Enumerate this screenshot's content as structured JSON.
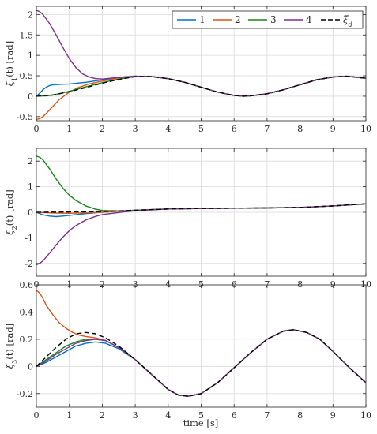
{
  "legend": {
    "entries": [
      {
        "label": "1",
        "color": "#0072BD",
        "dash": false
      },
      {
        "label": "2",
        "color": "#D95319",
        "dash": false
      },
      {
        "label": "3",
        "color": "#138713",
        "dash": false
      },
      {
        "label": "4",
        "color": "#7E2F8E",
        "dash": false
      },
      {
        "label": "ξ",
        "sub": "d",
        "color": "#000000",
        "dash": true
      }
    ]
  },
  "xaxis_label": "time [s]",
  "chart_data": [
    {
      "type": "line",
      "ylabel": "ξ1(t) [rad]",
      "ylabel_main": "ξ",
      "ylabel_sub": "1",
      "ylabel_rest": "(t) [rad]",
      "xlim": [
        0,
        10
      ],
      "ylim": [
        -0.6,
        2.2
      ],
      "xticks": [
        "0",
        "1",
        "2",
        "3",
        "4",
        "5",
        "6",
        "7",
        "8",
        "9",
        "10"
      ],
      "yticks": [
        {
          "v": -0.5,
          "label": "-0.5"
        },
        {
          "v": 0,
          "label": "0"
        },
        {
          "v": 0.5,
          "label": "0.5"
        },
        {
          "v": 1,
          "label": "1"
        },
        {
          "v": 1.5,
          "label": "1.5"
        },
        {
          "v": 2,
          "label": "2"
        }
      ],
      "grid": true,
      "legend_position": "top-right",
      "series": [
        {
          "name": "1",
          "color": "#0072BD",
          "x": [
            0,
            0.1,
            0.2,
            0.3,
            0.4,
            0.5,
            0.7,
            1,
            1.5,
            2,
            2.5,
            3,
            3.5,
            4,
            4.5,
            5,
            5.5,
            6,
            6.28,
            6.5,
            7,
            7.5,
            8,
            8.5,
            9,
            9.42,
            10
          ],
          "y": [
            0,
            0.07,
            0.16,
            0.22,
            0.26,
            0.28,
            0.29,
            0.3,
            0.34,
            0.4,
            0.46,
            0.49,
            0.48,
            0.43,
            0.34,
            0.22,
            0.1,
            0.02,
            0,
            0.01,
            0.06,
            0.16,
            0.28,
            0.4,
            0.47,
            0.49,
            0.44
          ]
        },
        {
          "name": "2",
          "color": "#D95319",
          "x": [
            0,
            0.1,
            0.2,
            0.3,
            0.5,
            0.7,
            1,
            1.3,
            1.6,
            2,
            2.5,
            3,
            3.5,
            4,
            4.5,
            5,
            5.5,
            6,
            6.28,
            6.5,
            7,
            7.5,
            8,
            8.5,
            9,
            9.42,
            10
          ],
          "y": [
            -0.57,
            -0.55,
            -0.5,
            -0.42,
            -0.25,
            -0.08,
            0.1,
            0.22,
            0.3,
            0.37,
            0.45,
            0.49,
            0.48,
            0.43,
            0.34,
            0.22,
            0.1,
            0.02,
            0,
            0.01,
            0.06,
            0.16,
            0.28,
            0.4,
            0.47,
            0.49,
            0.44
          ]
        },
        {
          "name": "3",
          "color": "#138713",
          "x": [
            0,
            0.3,
            0.5,
            0.7,
            1,
            1.5,
            2,
            2.5,
            3,
            3.5,
            4,
            4.5,
            5,
            5.5,
            6,
            6.28,
            6.5,
            7,
            7.5,
            8,
            8.5,
            9,
            9.42,
            10
          ],
          "y": [
            0,
            0.01,
            0.03,
            0.06,
            0.12,
            0.23,
            0.33,
            0.42,
            0.48,
            0.48,
            0.43,
            0.34,
            0.22,
            0.1,
            0.02,
            0,
            0.01,
            0.06,
            0.16,
            0.28,
            0.4,
            0.47,
            0.49,
            0.44
          ]
        },
        {
          "name": "4",
          "color": "#7E2F8E",
          "x": [
            0,
            0.1,
            0.2,
            0.4,
            0.6,
            0.8,
            1,
            1.2,
            1.4,
            1.6,
            1.8,
            2,
            2.5,
            3,
            3.5,
            4,
            4.5,
            5,
            5.5,
            6,
            6.28,
            6.5,
            7,
            7.5,
            8,
            8.5,
            9,
            9.42,
            10
          ],
          "y": [
            2.1,
            2.07,
            2.0,
            1.78,
            1.5,
            1.2,
            0.92,
            0.7,
            0.55,
            0.47,
            0.43,
            0.42,
            0.46,
            0.49,
            0.48,
            0.43,
            0.34,
            0.22,
            0.1,
            0.02,
            0,
            0.01,
            0.06,
            0.16,
            0.28,
            0.4,
            0.47,
            0.49,
            0.44
          ]
        },
        {
          "name": "ξd",
          "color": "#000000",
          "dash": true,
          "x": [
            0,
            0.5,
            1,
            1.5,
            2,
            2.5,
            3,
            3.5,
            4,
            4.5,
            5,
            5.5,
            6,
            6.28,
            6.5,
            7,
            7.5,
            8,
            8.5,
            9,
            9.42,
            10
          ],
          "y": [
            0,
            0.03,
            0.11,
            0.21,
            0.32,
            0.41,
            0.48,
            0.48,
            0.43,
            0.34,
            0.22,
            0.1,
            0.02,
            0,
            0.01,
            0.06,
            0.16,
            0.28,
            0.4,
            0.47,
            0.49,
            0.44
          ]
        }
      ]
    },
    {
      "type": "line",
      "ylabel": "ξ2(t) [rad]",
      "ylabel_main": "ξ",
      "ylabel_sub": "2",
      "ylabel_rest": "(t) [rad]",
      "xlim": [
        0,
        10
      ],
      "ylim": [
        -2.5,
        2.5
      ],
      "xticks": [
        "0",
        "1",
        "2",
        "3",
        "4",
        "5",
        "6",
        "7",
        "8",
        "9",
        "10"
      ],
      "yticks": [
        {
          "v": -2,
          "label": "-2"
        },
        {
          "v": -1,
          "label": "-1"
        },
        {
          "v": 0,
          "label": "0"
        },
        {
          "v": 1,
          "label": "1"
        },
        {
          "v": 2,
          "label": "2"
        }
      ],
      "grid": true,
      "series": [
        {
          "name": "1",
          "color": "#0072BD",
          "x": [
            0,
            0.2,
            0.4,
            0.6,
            0.8,
            1,
            1.5,
            2,
            2.5,
            3,
            4,
            5,
            6,
            7,
            8,
            9,
            10
          ],
          "y": [
            0,
            -0.1,
            -0.15,
            -0.17,
            -0.15,
            -0.12,
            -0.05,
            0,
            0.04,
            0.08,
            0.13,
            0.15,
            0.16,
            0.17,
            0.19,
            0.25,
            0.33
          ]
        },
        {
          "name": "2",
          "color": "#D95319",
          "x": [
            0,
            0.5,
            1,
            1.5,
            2,
            2.5,
            3,
            4,
            5,
            6,
            7,
            8,
            9,
            10
          ],
          "y": [
            0,
            -0.03,
            -0.04,
            -0.02,
            0,
            0.04,
            0.08,
            0.13,
            0.15,
            0.16,
            0.17,
            0.19,
            0.25,
            0.33
          ]
        },
        {
          "name": "3",
          "color": "#138713",
          "x": [
            0,
            0.1,
            0.2,
            0.4,
            0.6,
            0.8,
            1,
            1.2,
            1.5,
            1.8,
            2,
            2.5,
            3,
            4,
            5,
            6,
            7,
            8,
            9,
            10
          ],
          "y": [
            2.2,
            2.15,
            2.05,
            1.7,
            1.3,
            0.95,
            0.67,
            0.46,
            0.25,
            0.12,
            0.07,
            0.05,
            0.08,
            0.13,
            0.15,
            0.16,
            0.17,
            0.19,
            0.25,
            0.33
          ]
        },
        {
          "name": "4",
          "color": "#7E2F8E",
          "x": [
            0,
            0.1,
            0.2,
            0.4,
            0.6,
            0.8,
            1,
            1.2,
            1.5,
            1.8,
            2,
            2.5,
            3,
            4,
            5,
            6,
            7,
            8,
            9,
            10
          ],
          "y": [
            -2.05,
            -2.0,
            -1.9,
            -1.6,
            -1.28,
            -0.98,
            -0.72,
            -0.52,
            -0.3,
            -0.16,
            -0.09,
            -0.01,
            0.06,
            0.13,
            0.15,
            0.16,
            0.17,
            0.19,
            0.25,
            0.33
          ]
        },
        {
          "name": "ξd",
          "color": "#000000",
          "dash": true,
          "x": [
            0,
            1,
            2,
            3,
            4,
            5,
            6,
            7,
            8,
            9,
            10
          ],
          "y": [
            0,
            0.01,
            0.03,
            0.08,
            0.13,
            0.15,
            0.16,
            0.17,
            0.19,
            0.25,
            0.33
          ]
        }
      ]
    },
    {
      "type": "line",
      "ylabel": "ξ3(t) [rad]",
      "ylabel_main": "ξ",
      "ylabel_sub": "3",
      "ylabel_rest": "(t) [rad]",
      "xlabel": "time [s]",
      "xlim": [
        0,
        10
      ],
      "ylim": [
        -0.3,
        0.6
      ],
      "xticks": [
        "0",
        "1",
        "2",
        "3",
        "4",
        "5",
        "6",
        "7",
        "8",
        "9",
        "10"
      ],
      "yticks": [
        {
          "v": -0.2,
          "label": "-0.2"
        },
        {
          "v": 0,
          "label": "0"
        },
        {
          "v": 0.2,
          "label": "0.2"
        },
        {
          "v": 0.4,
          "label": "0.4"
        },
        {
          "v": 0.6,
          "label": "0.6"
        }
      ],
      "grid": true,
      "series": [
        {
          "name": "1",
          "color": "#0072BD",
          "x": [
            0,
            0.3,
            0.6,
            0.9,
            1.2,
            1.5,
            1.8,
            2.1,
            2.5,
            3,
            3.5,
            4,
            4.3,
            4.6,
            5,
            5.5,
            6,
            6.5,
            7,
            7.5,
            7.8,
            8.2,
            8.6,
            9,
            9.5,
            10
          ],
          "y": [
            0,
            0.03,
            0.07,
            0.11,
            0.15,
            0.17,
            0.18,
            0.17,
            0.13,
            0.05,
            -0.06,
            -0.17,
            -0.21,
            -0.22,
            -0.2,
            -0.12,
            -0.01,
            0.1,
            0.2,
            0.26,
            0.27,
            0.25,
            0.2,
            0.11,
            -0.01,
            -0.12
          ]
        },
        {
          "name": "2",
          "color": "#D95319",
          "x": [
            0,
            0.1,
            0.2,
            0.3,
            0.5,
            0.7,
            0.9,
            1.1,
            1.3,
            1.5,
            1.8,
            2.1,
            2.5,
            3,
            3.5,
            4,
            4.3,
            4.6,
            5,
            5.5,
            6,
            6.5,
            7,
            7.5,
            7.8,
            8.2,
            8.6,
            9,
            9.5,
            10
          ],
          "y": [
            0.56,
            0.54,
            0.5,
            0.45,
            0.38,
            0.32,
            0.28,
            0.25,
            0.23,
            0.22,
            0.21,
            0.19,
            0.14,
            0.05,
            -0.06,
            -0.17,
            -0.21,
            -0.22,
            -0.2,
            -0.12,
            -0.01,
            0.1,
            0.2,
            0.26,
            0.27,
            0.25,
            0.2,
            0.11,
            -0.01,
            -0.12
          ]
        },
        {
          "name": "3",
          "color": "#138713",
          "x": [
            0,
            0.3,
            0.6,
            0.9,
            1.2,
            1.5,
            1.8,
            2.1,
            2.5,
            3,
            3.5,
            4,
            4.3,
            4.6,
            5,
            5.5,
            6,
            6.5,
            7,
            7.5,
            7.8,
            8.2,
            8.6,
            9,
            9.5,
            10
          ],
          "y": [
            0,
            0.05,
            0.1,
            0.15,
            0.18,
            0.2,
            0.2,
            0.19,
            0.14,
            0.05,
            -0.06,
            -0.17,
            -0.21,
            -0.22,
            -0.2,
            -0.12,
            -0.01,
            0.1,
            0.2,
            0.26,
            0.27,
            0.25,
            0.2,
            0.11,
            -0.01,
            -0.12
          ]
        },
        {
          "name": "4",
          "color": "#7E2F8E",
          "x": [
            0,
            0.3,
            0.6,
            0.9,
            1.2,
            1.5,
            1.8,
            2.1,
            2.5,
            3,
            3.5,
            4,
            4.3,
            4.6,
            5,
            5.5,
            6,
            6.5,
            7,
            7.5,
            7.8,
            8.2,
            8.6,
            9,
            9.5,
            10
          ],
          "y": [
            0,
            0.04,
            0.09,
            0.13,
            0.17,
            0.19,
            0.2,
            0.19,
            0.14,
            0.05,
            -0.06,
            -0.17,
            -0.21,
            -0.22,
            -0.2,
            -0.12,
            -0.01,
            0.1,
            0.2,
            0.26,
            0.27,
            0.25,
            0.2,
            0.11,
            -0.01,
            -0.12
          ]
        },
        {
          "name": "ξd",
          "color": "#000000",
          "dash": true,
          "x": [
            0,
            0.3,
            0.6,
            0.9,
            1.2,
            1.5,
            1.8,
            2.1,
            2.5,
            3,
            3.5,
            4,
            4.3,
            4.6,
            5,
            5.5,
            6,
            6.5,
            7,
            7.5,
            7.8,
            8.2,
            8.6,
            9,
            9.5,
            10
          ],
          "y": [
            0,
            0.07,
            0.14,
            0.2,
            0.24,
            0.25,
            0.24,
            0.21,
            0.15,
            0.05,
            -0.06,
            -0.17,
            -0.21,
            -0.22,
            -0.2,
            -0.12,
            -0.01,
            0.1,
            0.2,
            0.26,
            0.27,
            0.25,
            0.2,
            0.11,
            -0.01,
            -0.12
          ]
        }
      ]
    }
  ]
}
